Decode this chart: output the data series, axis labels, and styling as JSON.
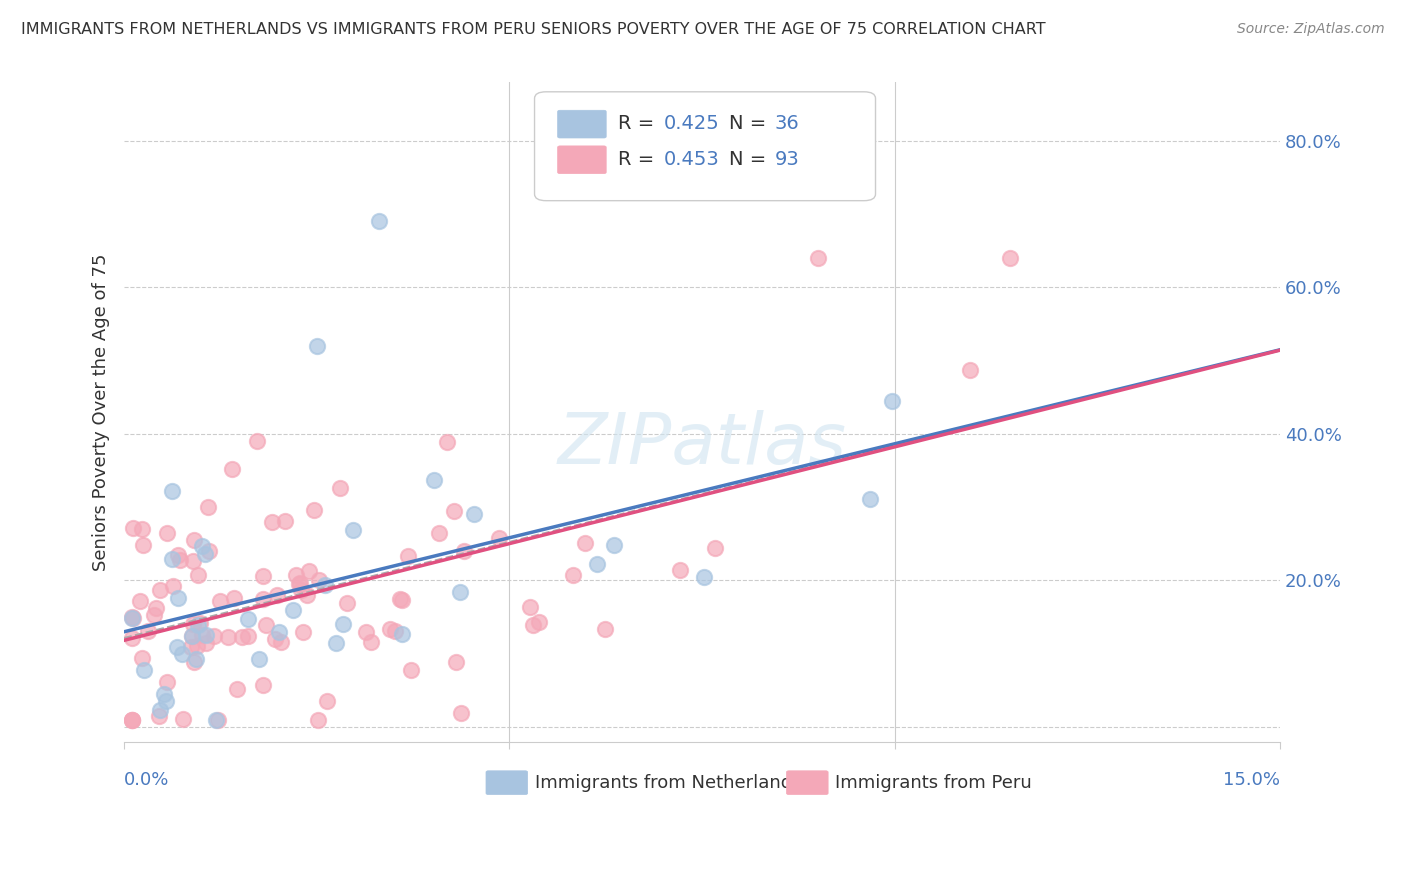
{
  "title": "IMMIGRANTS FROM NETHERLANDS VS IMMIGRANTS FROM PERU SENIORS POVERTY OVER THE AGE OF 75 CORRELATION CHART",
  "source": "Source: ZipAtlas.com",
  "ylabel": "Seniors Poverty Over the Age of 75",
  "xlim": [
    0.0,
    0.15
  ],
  "ylim": [
    -0.02,
    0.88
  ],
  "netherlands_R": 0.425,
  "netherlands_N": 36,
  "peru_R": 0.453,
  "peru_N": 93,
  "netherlands_color": "#a8c4e0",
  "peru_color": "#f4a8b8",
  "netherlands_line_color": "#4a7abf",
  "peru_line_color": "#e05080",
  "trend_line_color": "#aaaaaa",
  "background_color": "#ffffff",
  "grid_color": "#cccccc",
  "tick_color": "#4a7abf"
}
